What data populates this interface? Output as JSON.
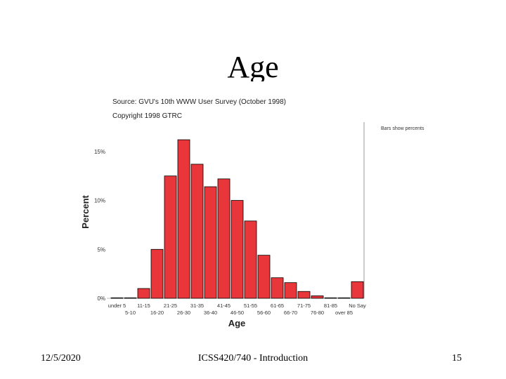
{
  "slide": {
    "title": "Age",
    "footer_date": "12/5/2020",
    "footer_course": "ICSS420/740 - Introduction",
    "footer_page": "15"
  },
  "chart_data": {
    "type": "bar",
    "source_line": "Source: GVU's 10th WWW User Survey (October 1998)",
    "copyright_line": "Copyright 1998 GTRC",
    "note": "Bars show percents",
    "xlabel": "Age",
    "ylabel": "Percent",
    "ylim": [
      0,
      18
    ],
    "yticks": [
      {
        "value": 0,
        "label": "0%"
      },
      {
        "value": 5,
        "label": "5%"
      },
      {
        "value": 10,
        "label": "10%"
      },
      {
        "value": 15,
        "label": "15%"
      }
    ],
    "categories": [
      "under 5",
      "5-10",
      "11-15",
      "16-20",
      "21-25",
      "26-30",
      "31-35",
      "36-40",
      "41-45",
      "46-50",
      "51-55",
      "56-60",
      "61-65",
      "66-70",
      "71-75",
      "76-80",
      "81-85",
      "over 85",
      "No Say"
    ],
    "values": [
      0.05,
      0.05,
      1.0,
      5.0,
      12.5,
      16.2,
      13.7,
      11.4,
      12.2,
      10.0,
      7.9,
      4.4,
      2.1,
      1.6,
      0.7,
      0.25,
      0.05,
      0.05,
      1.7
    ],
    "bar_color": "#e8363a",
    "grid": false
  }
}
